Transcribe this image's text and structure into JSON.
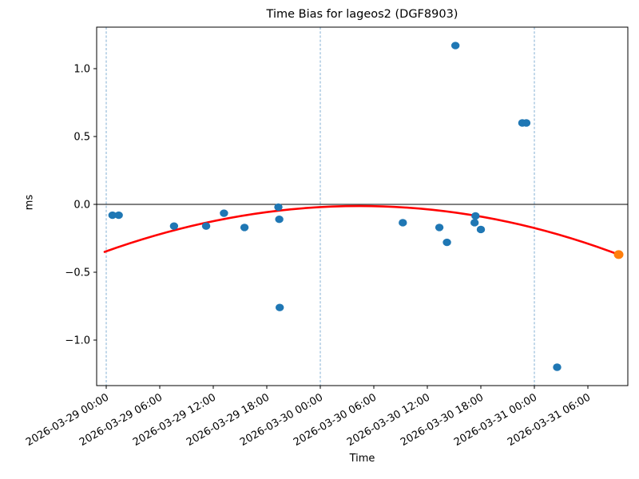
{
  "chart_data": {
    "type": "scatter",
    "title": "Time Bias for lageos2 (DGF8903)",
    "xlabel": "Time",
    "ylabel": "ms",
    "epoch": "2026-03-29 00:00",
    "x_range_hours": [
      -1.07,
      58.48
    ],
    "ylim": [
      -1.33,
      1.31
    ],
    "grid": false,
    "legend": "none",
    "y_ticks": [
      1.0,
      0.5,
      0.0,
      -0.5,
      -1.0
    ],
    "x_ticks": [
      {
        "hours": 0,
        "label": "2026-03-29 00:00"
      },
      {
        "hours": 6,
        "label": "2026-03-29 06:00"
      },
      {
        "hours": 12,
        "label": "2026-03-29 12:00"
      },
      {
        "hours": 18,
        "label": "2026-03-29 18:00"
      },
      {
        "hours": 24,
        "label": "2026-03-30 00:00"
      },
      {
        "hours": 30,
        "label": "2026-03-30 06:00"
      },
      {
        "hours": 36,
        "label": "2026-03-30 12:00"
      },
      {
        "hours": 42,
        "label": "2026-03-30 18:00"
      },
      {
        "hours": 48,
        "label": "2026-03-31 00:00"
      },
      {
        "hours": 54,
        "label": "2026-03-31 06:00"
      }
    ],
    "day_boundary_hours": [
      0,
      24,
      48
    ],
    "zero_line_ms": 0,
    "colors": {
      "observations": "#1f77b4",
      "latest_point": "#ff7f0e",
      "fit_curve": "#ff0000",
      "day_boundary_line": "#76a7cf",
      "zero_line": "#000000",
      "axes": "#000000"
    },
    "series": [
      {
        "name": "time-bias-observations",
        "color": "#1f77b4",
        "points": [
          {
            "time": "2026-03-29 00:40",
            "hours": 0.7,
            "ms": -0.08
          },
          {
            "time": "2026-03-29 01:25",
            "hours": 1.4,
            "ms": -0.08
          },
          {
            "time": "2026-03-29 07:35",
            "hours": 7.6,
            "ms": -0.16
          },
          {
            "time": "2026-03-29 11:10",
            "hours": 11.2,
            "ms": -0.16
          },
          {
            "time": "2026-03-29 13:10",
            "hours": 13.2,
            "ms": -0.065
          },
          {
            "time": "2026-03-29 15:30",
            "hours": 15.5,
            "ms": -0.17
          },
          {
            "time": "2026-03-29 19:18",
            "hours": 19.3,
            "ms": -0.02
          },
          {
            "time": "2026-03-29 19:24",
            "hours": 19.4,
            "ms": -0.11
          },
          {
            "time": "2026-03-29 19:27",
            "hours": 19.45,
            "ms": -0.76
          },
          {
            "time": "2026-03-30 09:15",
            "hours": 33.25,
            "ms": -0.135
          },
          {
            "time": "2026-03-30 13:20",
            "hours": 37.35,
            "ms": -0.17
          },
          {
            "time": "2026-03-30 14:10",
            "hours": 38.2,
            "ms": -0.28
          },
          {
            "time": "2026-03-30 15:10",
            "hours": 39.15,
            "ms": 1.17
          },
          {
            "time": "2026-03-30 17:17",
            "hours": 41.3,
            "ms": -0.135
          },
          {
            "time": "2026-03-30 17:22",
            "hours": 41.4,
            "ms": -0.085
          },
          {
            "time": "2026-03-30 18:01",
            "hours": 42.0,
            "ms": -0.185
          },
          {
            "time": "2026-03-30 22:40",
            "hours": 46.65,
            "ms": 0.6
          },
          {
            "time": "2026-03-30 23:05",
            "hours": 47.1,
            "ms": 0.6
          },
          {
            "time": "2026-03-31 02:34",
            "hours": 50.55,
            "ms": -1.2
          }
        ]
      },
      {
        "name": "latest-point",
        "color": "#ff7f0e",
        "points": [
          {
            "time": "2026-03-31 09:28",
            "hours": 57.45,
            "ms": -0.37
          }
        ]
      }
    ],
    "fit_curve": {
      "name": "quadratic-fit",
      "color": "#ff0000",
      "anchors": [
        {
          "hours": -0.18,
          "ms": -0.35
        },
        {
          "hours": 28.8,
          "ms": -0.012
        },
        {
          "hours": 57.45,
          "ms": -0.37
        }
      ]
    }
  }
}
